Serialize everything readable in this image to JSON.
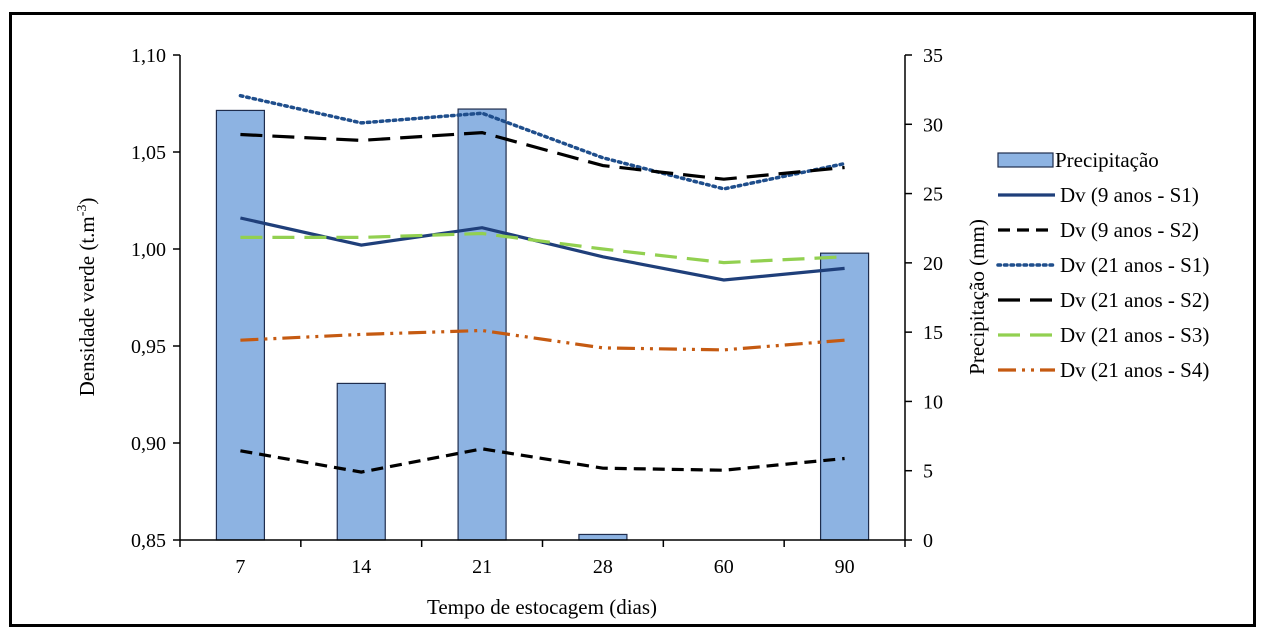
{
  "chart_data": {
    "type": "bar+line",
    "xlabel": "Tempo de estocagem (dias)",
    "ylabel_left": "Densidade verde  (t.m",
    "ylabel_left_sup": "-3",
    "ylabel_left_end": ")",
    "ylabel_right": "Precipitação (mm)",
    "categories": [
      "7",
      "14",
      "21",
      "28",
      "60",
      "90"
    ],
    "y_left_ticks": [
      "0,85",
      "0,90",
      "0,95",
      "1,00",
      "1,05",
      "1,10"
    ],
    "y_right_ticks": [
      "0",
      "5",
      "10",
      "15",
      "20",
      "25",
      "30",
      "35"
    ],
    "ylim_left": [
      0.85,
      1.1
    ],
    "ylim_right": [
      0,
      35
    ],
    "grid": false,
    "legend_position": "right",
    "bars": {
      "name": "Precipitação",
      "axis": "right",
      "color": "#8db3e2",
      "edge_color": "#1f2d4d",
      "values": [
        31.0,
        11.3,
        31.1,
        0.4,
        0.0,
        20.7
      ]
    },
    "series": [
      {
        "name": "Dv (9 anos - S1)",
        "color": "#1f3f7a",
        "dash": "solid",
        "values": [
          1.016,
          1.002,
          1.011,
          0.996,
          0.984,
          0.99
        ]
      },
      {
        "name": "Dv (9 anos - S2)",
        "color": "#000000",
        "dash": "dash",
        "values": [
          0.896,
          0.885,
          0.897,
          0.887,
          0.886,
          0.892
        ]
      },
      {
        "name": "Dv (21 anos - S1)",
        "color": "#1f4e8c",
        "dash": "dot",
        "values": [
          1.079,
          1.065,
          1.07,
          1.047,
          1.031,
          1.044
        ]
      },
      {
        "name": "Dv (21 anos - S2)",
        "color": "#000000",
        "dash": "longdash",
        "values": [
          1.059,
          1.056,
          1.06,
          1.043,
          1.036,
          1.042
        ]
      },
      {
        "name": "Dv (21 anos - S3)",
        "color": "#92d050",
        "dash": "longdash",
        "values": [
          1.006,
          1.006,
          1.008,
          1.0,
          0.993,
          0.996
        ]
      },
      {
        "name": "Dv (21 anos - S4)",
        "color": "#c55a11",
        "dash": "dashdotdot",
        "values": [
          0.953,
          0.956,
          0.958,
          0.949,
          0.948,
          0.953
        ]
      }
    ]
  }
}
